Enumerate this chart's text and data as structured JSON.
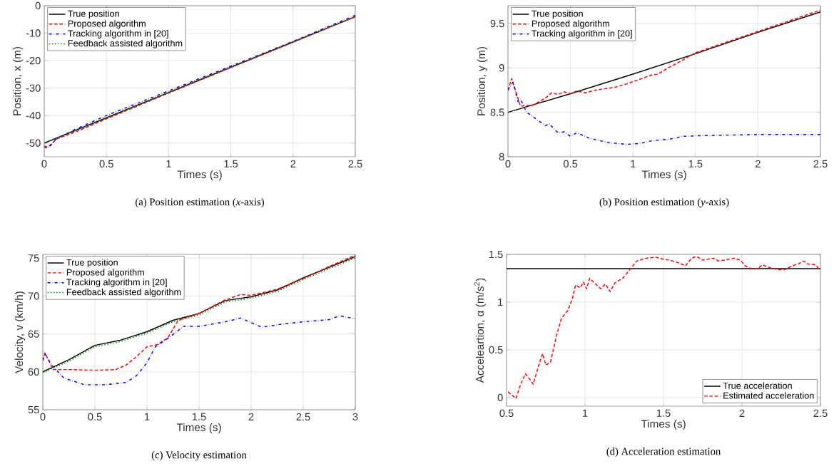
{
  "chart_data": [
    {
      "type": "line",
      "title": "(a)  Position estimation (*x*-axis)",
      "xlabel": "Times (s)",
      "ylabel": "Position, x (m)",
      "xlim": [
        0,
        2.5
      ],
      "ylim": [
        -55,
        0
      ],
      "xticks": [
        0,
        0.5,
        1,
        1.5,
        2,
        2.5
      ],
      "yticks": [
        -50,
        -40,
        -30,
        -20,
        -10,
        0
      ],
      "grid": true,
      "legend": "top left",
      "series": [
        {
          "name": "True position",
          "color": "#000000",
          "line_style": "solid",
          "x": [
            0,
            0.5,
            1,
            1.5,
            2,
            2.5
          ],
          "values": [
            -50,
            -40.8,
            -31.6,
            -22.4,
            -13.2,
            -4
          ]
        },
        {
          "name": "Proposed algorithm",
          "color": "#ff0000",
          "line_style": "dashed",
          "x": [
            0,
            0.03,
            0.1,
            0.25,
            0.5,
            0.75,
            1,
            1.5,
            2,
            2.5
          ],
          "values": [
            -51,
            -51.5,
            -48.5,
            -46,
            -41.2,
            -36.5,
            -31.8,
            -22.5,
            -13.3,
            -4
          ]
        },
        {
          "name": "Tracking algorithm in [20]",
          "color": "#0000ff",
          "line_style": "dashdot",
          "x": [
            0,
            0.03,
            0.1,
            0.25,
            0.5,
            0.75,
            1,
            1.5,
            2,
            2.5
          ],
          "values": [
            -51.5,
            -52,
            -48.3,
            -45,
            -40,
            -35.5,
            -31,
            -22,
            -13,
            -3.5
          ]
        },
        {
          "name": "Feedback assisted algorithm",
          "color": "#008000",
          "line_style": "dotted",
          "x": [
            0,
            0.5,
            1,
            1.5,
            2,
            2.5
          ],
          "values": [
            -50,
            -40.9,
            -31.7,
            -22.5,
            -13.3,
            -4
          ]
        }
      ]
    },
    {
      "type": "line",
      "title": "(b)  Position estimation (*y*-axis)",
      "xlabel": "Times (s)",
      "ylabel": "Position, y (m)",
      "xlim": [
        0,
        2.5
      ],
      "ylim": [
        8,
        9.7
      ],
      "xticks": [
        0,
        0.5,
        1,
        1.5,
        2,
        2.5
      ],
      "yticks": [
        8,
        8.5,
        9,
        9.5
      ],
      "grid": true,
      "legend": "top left",
      "series": [
        {
          "name": "True position",
          "color": "#000000",
          "line_style": "solid",
          "x": [
            0,
            0.5,
            1,
            1.5,
            2,
            2.5
          ],
          "values": [
            8.5,
            8.71,
            8.93,
            9.16,
            9.4,
            9.63
          ]
        },
        {
          "name": "Proposed algorithm",
          "color": "#ff0000",
          "line_style": "dashed",
          "x": [
            0,
            0.03,
            0.1,
            0.2,
            0.25,
            0.3,
            0.35,
            0.4,
            0.45,
            0.5,
            0.55,
            0.62,
            0.7,
            0.85,
            0.95,
            1.05,
            1.15,
            1.2,
            1.28,
            1.35,
            1.5,
            2,
            2.5
          ],
          "values": [
            8.75,
            8.88,
            8.57,
            8.58,
            8.62,
            8.66,
            8.72,
            8.7,
            8.73,
            8.71,
            8.74,
            8.72,
            8.75,
            8.78,
            8.82,
            8.87,
            8.92,
            8.93,
            9.0,
            9.05,
            9.17,
            9.41,
            9.65
          ]
        },
        {
          "name": "Tracking algorithm in [20]",
          "color": "#0000ff",
          "line_style": "dashdot",
          "x": [
            0,
            0.04,
            0.08,
            0.1,
            0.15,
            0.25,
            0.3,
            0.33,
            0.4,
            0.45,
            0.5,
            0.55,
            0.65,
            0.8,
            0.95,
            1.05,
            1.15,
            1.3,
            1.4,
            1.6,
            2,
            2.5
          ],
          "values": [
            8.75,
            8.84,
            8.62,
            8.65,
            8.5,
            8.4,
            8.35,
            8.37,
            8.27,
            8.28,
            8.23,
            8.27,
            8.21,
            8.16,
            8.14,
            8.15,
            8.18,
            8.2,
            8.23,
            8.24,
            8.25,
            8.25
          ]
        }
      ]
    },
    {
      "type": "line",
      "title": "(c)  Velocity estimation",
      "xlabel": "Times (s)",
      "ylabel": "Velocity, v (km/h)",
      "xlim": [
        0,
        3
      ],
      "ylim": [
        55,
        75.5
      ],
      "xticks": [
        0,
        0.5,
        1,
        1.5,
        2,
        2.5,
        3
      ],
      "yticks": [
        55,
        60,
        65,
        70,
        75
      ],
      "grid": true,
      "legend": "top left",
      "series": [
        {
          "name": "True position",
          "color": "#000000",
          "line_style": "solid",
          "x": [
            0,
            0.25,
            0.5,
            0.75,
            1,
            1.25,
            1.5,
            1.75,
            2,
            2.25,
            2.5,
            2.75,
            3
          ],
          "values": [
            60,
            61.6,
            63.5,
            64.2,
            65.3,
            66.8,
            67.7,
            69.4,
            69.9,
            70.8,
            72.4,
            73.8,
            75.2
          ]
        },
        {
          "name": "Proposed algorithm",
          "color": "#ff0000",
          "line_style": "dashed",
          "x": [
            0,
            0.02,
            0.1,
            0.25,
            0.5,
            0.7,
            0.8,
            0.9,
            1,
            1.1,
            1.2,
            1.3,
            1.5,
            1.75,
            1.9,
            2,
            2.25,
            2.5,
            2.75,
            3
          ],
          "values": [
            61.5,
            62.5,
            60.3,
            60.3,
            60.2,
            60.3,
            60.9,
            62,
            63.3,
            63.6,
            64.5,
            66.8,
            67.7,
            69.5,
            70.2,
            70.1,
            70.9,
            72.3,
            73.9,
            75.4
          ]
        },
        {
          "name": "Tracking algorithm in [20]",
          "color": "#0000ff",
          "line_style": "dashdot",
          "x": [
            0,
            0.02,
            0.08,
            0.2,
            0.4,
            0.6,
            0.8,
            0.9,
            1,
            1.08,
            1.2,
            1.35,
            1.5,
            1.75,
            1.9,
            2.1,
            2.3,
            2.5,
            2.75,
            2.85,
            3
          ],
          "values": [
            61.5,
            62.4,
            61,
            59.2,
            58.3,
            58.3,
            58.6,
            59.5,
            61.2,
            63.3,
            64.4,
            66,
            66,
            66.6,
            67.1,
            65.9,
            66.3,
            66.6,
            66.9,
            67.4,
            67
          ]
        },
        {
          "name": "Feedback assisted algorithm",
          "color": "#008000",
          "line_style": "dotted",
          "x": [
            0,
            0.25,
            0.5,
            0.75,
            1,
            1.25,
            1.5,
            1.75,
            2,
            2.25,
            2.5,
            2.75,
            3
          ],
          "values": [
            59.9,
            61.4,
            63.3,
            64,
            65.1,
            66.6,
            67.5,
            69.2,
            69.7,
            70.6,
            72.2,
            73.6,
            75
          ]
        }
      ]
    },
    {
      "type": "line",
      "title": "(d)  Acceleration estimation",
      "xlabel": "Times (s)",
      "ylabel": "Acceleartion, α (m/s$^{2}$)",
      "xlim": [
        0.5,
        2.5
      ],
      "ylim": [
        -0.09,
        1.5
      ],
      "xticks": [
        0.5,
        1,
        1.5,
        2,
        2.5
      ],
      "yticks": [
        0,
        0.5,
        1,
        1.5
      ],
      "grid": true,
      "legend": "bottom right",
      "series": [
        {
          "name": "True acceleration",
          "color": "#000000",
          "line_style": "solid",
          "x": [
            0.5,
            2.5
          ],
          "values": [
            1.35,
            1.35
          ]
        },
        {
          "name": "Estimated acceleration",
          "color": "#ff0000",
          "line_style": "dashed",
          "x": [
            0.51,
            0.56,
            0.59,
            0.62,
            0.64,
            0.67,
            0.7,
            0.73,
            0.75,
            0.78,
            0.82,
            0.85,
            0.89,
            0.92,
            0.94,
            0.97,
            0.99,
            1.01,
            1.03,
            1.06,
            1.1,
            1.13,
            1.16,
            1.19,
            1.24,
            1.26,
            1.29,
            1.33,
            1.39,
            1.45,
            1.5,
            1.54,
            1.6,
            1.64,
            1.68,
            1.71,
            1.75,
            1.82,
            1.85,
            1.89,
            1.95,
            1.99,
            2.02,
            2.06,
            2.1,
            2.13,
            2.18,
            2.23,
            2.27,
            2.32,
            2.36,
            2.39,
            2.42,
            2.47,
            2.49
          ],
          "values": [
            0.06,
            -0.01,
            0.14,
            0.25,
            0.21,
            0.14,
            0.31,
            0.46,
            0.34,
            0.37,
            0.66,
            0.83,
            0.91,
            1.04,
            1.18,
            1.15,
            1.21,
            1.14,
            1.25,
            1.2,
            1.14,
            1.19,
            1.11,
            1.2,
            1.25,
            1.29,
            1.35,
            1.43,
            1.46,
            1.47,
            1.45,
            1.44,
            1.41,
            1.38,
            1.46,
            1.48,
            1.44,
            1.46,
            1.43,
            1.44,
            1.46,
            1.44,
            1.38,
            1.35,
            1.35,
            1.39,
            1.36,
            1.34,
            1.34,
            1.38,
            1.4,
            1.43,
            1.4,
            1.39,
            1.35
          ]
        }
      ]
    }
  ]
}
